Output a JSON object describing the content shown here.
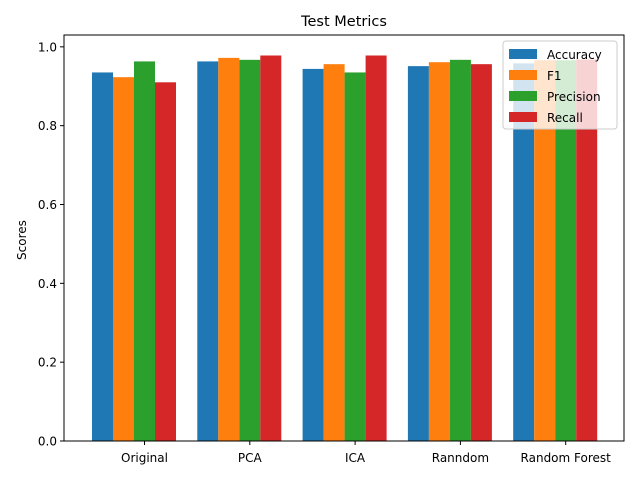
{
  "chart_data": {
    "type": "bar",
    "title": "Test Metrics",
    "xlabel": "",
    "ylabel": "Scores",
    "ylim": [
      0,
      1.03
    ],
    "yticks": [
      0.0,
      0.2,
      0.4,
      0.6,
      0.8,
      1.0
    ],
    "ytick_labels": [
      "0.0",
      "0.2",
      "0.4",
      "0.6",
      "0.8",
      "1.0"
    ],
    "categories": [
      "Original",
      "PCA",
      "ICA",
      "Ranndom",
      "Random Forest"
    ],
    "series": [
      {
        "name": "Accuracy",
        "color": "#1f77b4",
        "values": [
          0.935,
          0.963,
          0.944,
          0.951,
          0.958
        ]
      },
      {
        "name": "F1",
        "color": "#ff7f0e",
        "values": [
          0.923,
          0.972,
          0.956,
          0.961,
          0.966
        ]
      },
      {
        "name": "Precision",
        "color": "#2ca02c",
        "values": [
          0.963,
          0.967,
          0.935,
          0.967,
          0.966
        ]
      },
      {
        "name": "Recall",
        "color": "#d62728",
        "values": [
          0.91,
          0.978,
          0.978,
          0.956,
          0.968
        ]
      }
    ],
    "grid": false,
    "legend_position": "top-right"
  }
}
